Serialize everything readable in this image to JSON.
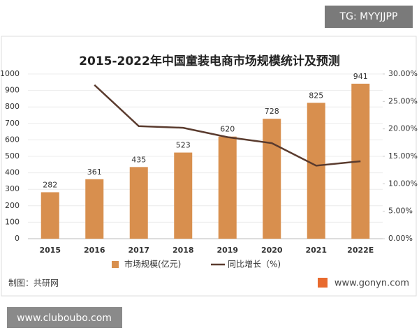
{
  "watermark": "TG: MYYJJPP",
  "footer_left": "制图：共研网",
  "footer_right": "www.gonyn.com",
  "source_banner": "www.cluboubo.com",
  "chart_data": {
    "type": "bar",
    "title": "2015-2022年中国童装电商市场规模统计及预测",
    "categories": [
      "2015",
      "2016",
      "2017",
      "2018",
      "2019",
      "2020",
      "2021",
      "2022E"
    ],
    "series": [
      {
        "name": "市场规模(亿元)",
        "type": "bar",
        "color": "#d88f4e",
        "values": [
          282,
          361,
          435,
          523,
          620,
          728,
          825,
          941
        ]
      },
      {
        "name": "同比增长（%)",
        "type": "line",
        "axis": "y2",
        "color": "#5a3b2e",
        "values": [
          null,
          28.0,
          20.5,
          20.2,
          18.5,
          17.4,
          13.3,
          14.1
        ]
      }
    ],
    "ylim": [
      0,
      1000
    ],
    "yticks": [
      0,
      100,
      200,
      300,
      400,
      500,
      600,
      700,
      800,
      900,
      1000
    ],
    "y2lim": [
      0,
      30
    ],
    "y2ticks": [
      {
        "value": 0,
        "label": "0.00%"
      },
      {
        "value": 5,
        "label": "5.00%"
      },
      {
        "value": 10,
        "label": "10.00%"
      },
      {
        "value": 15,
        "label": "15.00%"
      },
      {
        "value": 20,
        "label": "20.00%"
      },
      {
        "value": 25,
        "label": "25.00%"
      },
      {
        "value": 30,
        "label": "30.00%"
      }
    ],
    "grid": true,
    "legend": "bottom"
  }
}
